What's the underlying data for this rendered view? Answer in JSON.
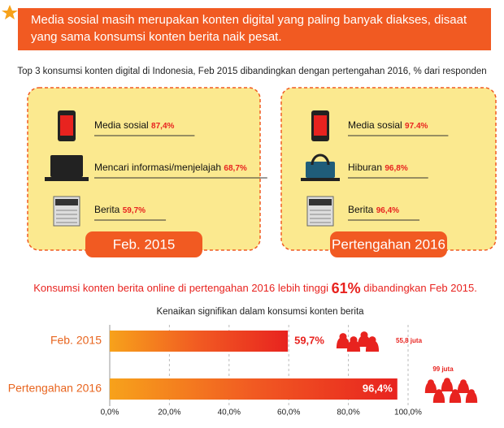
{
  "header": {
    "text": "Media sosial masih merupakan konten digital yang paling banyak diakses, disaat yang sama konsumsi konten berita naik pesat."
  },
  "subtitle": "Top 3 konsumsi konten digital di Indonesia, Feb 2015 dibandingkan dengan pertengahan 2016, % dari responden",
  "panels": [
    {
      "label": "Feb. 2015",
      "items": [
        {
          "name": "Media sosial",
          "value": "87,4%"
        },
        {
          "name": "Mencari informasi/menjelajah",
          "value": "68,7%"
        },
        {
          "name": "Berita",
          "value": "59,7%"
        }
      ]
    },
    {
      "label": "Pertengahan 2016",
      "items": [
        {
          "name": "Media sosial",
          "value": "97.4%"
        },
        {
          "name": "Hiburan",
          "value": "96,8%"
        },
        {
          "name": "Berita",
          "value": "96,4%"
        }
      ]
    }
  ],
  "highlight": {
    "before": "Konsumsi konten berita online di pertengahan 2016 lebih tinggi",
    "value": "61%",
    "after": "dibandingkan Feb 2015."
  },
  "chart": {
    "type": "bar",
    "title": "Kenaikan signifikan dalam konsumsi konten berita",
    "categories": [
      "Feb. 2015",
      "Pertengahan 2016"
    ],
    "values": [
      59.7,
      96.4
    ],
    "value_labels": [
      "59,7%",
      "96,4%"
    ],
    "audience": [
      "55,8 juta",
      "99 juta"
    ],
    "xlim": [
      0,
      100
    ],
    "xticks": [
      {
        "value": 0,
        "label": "0,0%"
      },
      {
        "value": 20,
        "label": "20,0%"
      },
      {
        "value": 40,
        "label": "40,0%"
      },
      {
        "value": 60,
        "label": "60,0%"
      },
      {
        "value": 80,
        "label": "80,0%"
      },
      {
        "value": 100,
        "label": "100,0%"
      }
    ]
  }
}
